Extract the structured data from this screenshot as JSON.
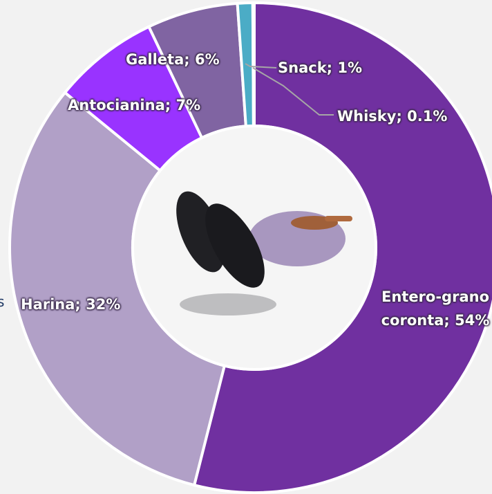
{
  "chart_data": {
    "type": "donut",
    "values": [
      54,
      32,
      7,
      6,
      1,
      0.1
    ],
    "value_labels": [
      "Entero-grano coronta; 54%",
      "Harina; 32%",
      "Antocianina; 7%",
      "Galleta; 6%",
      "Snack; 1%",
      "Whisky; 0.1%"
    ],
    "colors": [
      "#7030a0",
      "#b1a0c7",
      "#9933ff",
      "#8064a2",
      "#4bacc6",
      "#31859c"
    ],
    "annotations": [
      "s"
    ]
  }
}
